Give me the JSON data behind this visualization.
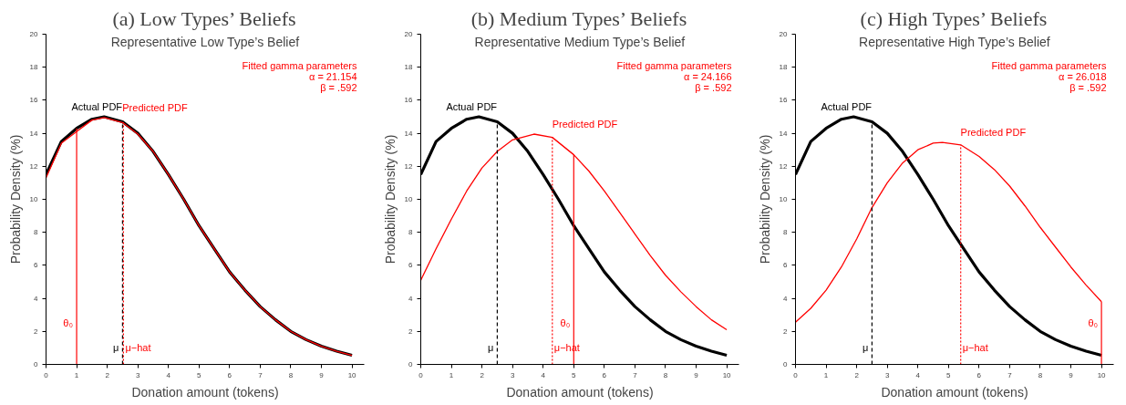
{
  "chart_data": [
    {
      "type": "line",
      "title": "(a) Low Types’ Beliefs",
      "subtitle": "Representative Low Type’s Belief",
      "xlabel": "Donation amount (tokens)",
      "ylabel": "Probability Density (%)",
      "xlim": [
        0,
        10.4
      ],
      "ylim": [
        0,
        20
      ],
      "xticks": [
        0,
        1,
        2,
        3,
        4,
        5,
        6,
        7,
        8,
        9,
        10
      ],
      "yticks": [
        0,
        2,
        4,
        6,
        8,
        10,
        12,
        14,
        16,
        18,
        20
      ],
      "series": [
        {
          "name": "Actual PDF",
          "color": "#000000",
          "x": [
            0,
            0.5,
            1,
            1.5,
            1.9,
            2.5,
            3,
            3.5,
            4,
            4.5,
            5,
            5.5,
            6,
            6.5,
            7,
            7.5,
            8,
            8.5,
            9,
            9.5,
            10
          ],
          "values": [
            11.5,
            13.5,
            14.3,
            14.85,
            15.0,
            14.7,
            14.0,
            12.9,
            11.5,
            10.0,
            8.4,
            7.0,
            5.6,
            4.5,
            3.5,
            2.7,
            2.0,
            1.5,
            1.1,
            0.8,
            0.55
          ]
        },
        {
          "name": "Predicted PDF",
          "color": "#ff0000",
          "x": [
            0,
            0.5,
            1,
            1.5,
            1.9,
            2.5,
            3,
            3.5,
            4,
            4.5,
            5,
            5.5,
            6,
            6.5,
            7,
            7.5,
            8,
            8.5,
            9,
            9.5,
            10
          ],
          "values": [
            11.3,
            13.4,
            14.1,
            14.8,
            14.95,
            14.65,
            13.95,
            12.9,
            11.5,
            10.0,
            8.4,
            7.0,
            5.6,
            4.5,
            3.5,
            2.7,
            2.0,
            1.5,
            1.1,
            0.8,
            0.55
          ]
        }
      ],
      "ref_lines": [
        {
          "axis": "x",
          "value": 1,
          "label": "θ₀",
          "color": "#ff0000",
          "line_style": "solid"
        },
        {
          "axis": "x",
          "value": 2.5,
          "label": "μ",
          "color": "#000000",
          "line_style": "dashed"
        },
        {
          "axis": "x",
          "value": 2.53,
          "label": "μ−hat",
          "color": "#ff0000",
          "line_style": "dotted"
        }
      ],
      "annotations": [
        "Fitted gamma parameters",
        "α = 21.154",
        "β = .592"
      ]
    },
    {
      "type": "line",
      "title": "(b) Medium Types’ Beliefs",
      "subtitle": "Representative Medium Type’s Belief",
      "xlabel": "Donation amount (tokens)",
      "ylabel": "Probability Density (%)",
      "xlim": [
        0,
        10.4
      ],
      "ylim": [
        0,
        20
      ],
      "xticks": [
        0,
        1,
        2,
        3,
        4,
        5,
        6,
        7,
        8,
        9,
        10
      ],
      "yticks": [
        0,
        2,
        4,
        6,
        8,
        10,
        12,
        14,
        16,
        18,
        20
      ],
      "series": [
        {
          "name": "Actual PDF",
          "color": "#000000",
          "x": [
            0,
            0.5,
            1,
            1.5,
            1.9,
            2.5,
            3,
            3.5,
            4,
            4.5,
            5,
            5.5,
            6,
            6.5,
            7,
            7.5,
            8,
            8.5,
            9,
            9.5,
            10
          ],
          "values": [
            11.5,
            13.5,
            14.3,
            14.85,
            15.0,
            14.7,
            14.0,
            12.9,
            11.5,
            10.0,
            8.4,
            7.0,
            5.6,
            4.5,
            3.5,
            2.7,
            2.0,
            1.5,
            1.1,
            0.8,
            0.55
          ]
        },
        {
          "name": "Predicted PDF",
          "color": "#ff0000",
          "x": [
            0,
            0.5,
            1,
            1.5,
            2,
            2.5,
            3,
            3.7,
            4.3,
            5,
            5.5,
            6,
            6.5,
            7,
            7.5,
            8,
            8.5,
            9,
            9.5,
            10
          ],
          "values": [
            5.1,
            7.0,
            8.8,
            10.5,
            11.9,
            12.9,
            13.6,
            13.95,
            13.75,
            12.7,
            11.7,
            10.5,
            9.2,
            7.9,
            6.6,
            5.4,
            4.4,
            3.5,
            2.7,
            2.1
          ]
        }
      ],
      "ref_lines": [
        {
          "axis": "x",
          "value": 2.5,
          "label": "μ",
          "color": "#000000",
          "line_style": "dashed"
        },
        {
          "axis": "x",
          "value": 4.3,
          "label": "μ−hat",
          "color": "#ff0000",
          "line_style": "dotted"
        },
        {
          "axis": "x",
          "value": 5,
          "label": "θ₀",
          "color": "#ff0000",
          "line_style": "solid"
        }
      ],
      "annotations": [
        "Fitted gamma parameters",
        "α = 24.166",
        "β = .592"
      ]
    },
    {
      "type": "line",
      "title": "(c) High Types’ Beliefs",
      "subtitle": "Representative High Type’s Belief",
      "xlabel": "Donation amount (tokens)",
      "ylabel": "Probability Density (%)",
      "xlim": [
        0,
        10.4
      ],
      "ylim": [
        0,
        20
      ],
      "xticks": [
        0,
        1,
        2,
        3,
        4,
        5,
        6,
        7,
        8,
        9,
        10
      ],
      "yticks": [
        0,
        2,
        4,
        6,
        8,
        10,
        12,
        14,
        16,
        18,
        20
      ],
      "series": [
        {
          "name": "Actual PDF",
          "color": "#000000",
          "x": [
            0,
            0.5,
            1,
            1.5,
            1.9,
            2.5,
            3,
            3.5,
            4,
            4.5,
            5,
            5.5,
            6,
            6.5,
            7,
            7.5,
            8,
            8.5,
            9,
            9.5,
            10
          ],
          "values": [
            11.5,
            13.5,
            14.3,
            14.85,
            15.0,
            14.7,
            14.0,
            12.9,
            11.5,
            10.0,
            8.4,
            7.0,
            5.6,
            4.5,
            3.5,
            2.7,
            2.0,
            1.5,
            1.1,
            0.8,
            0.55
          ]
        },
        {
          "name": "Predicted PDF",
          "color": "#ff0000",
          "x": [
            0,
            0.5,
            1,
            1.5,
            2,
            2.5,
            3,
            3.5,
            4,
            4.5,
            4.8,
            5.4,
            6,
            6.5,
            7,
            7.5,
            8,
            8.5,
            9,
            9.5,
            10
          ],
          "values": [
            2.55,
            3.4,
            4.5,
            5.9,
            7.6,
            9.5,
            11.0,
            12.2,
            13.0,
            13.4,
            13.45,
            13.3,
            12.6,
            11.8,
            10.8,
            9.6,
            8.3,
            7.1,
            5.9,
            4.8,
            3.8
          ]
        }
      ],
      "ref_lines": [
        {
          "axis": "x",
          "value": 2.5,
          "label": "μ",
          "color": "#000000",
          "line_style": "dashed"
        },
        {
          "axis": "x",
          "value": 5.4,
          "label": "μ−hat",
          "color": "#ff0000",
          "line_style": "dotted"
        },
        {
          "axis": "x",
          "value": 10,
          "label": "θ₀",
          "color": "#ff0000",
          "line_style": "solid"
        }
      ],
      "annotations": [
        "Fitted gamma parameters",
        "α = 26.018",
        "β = .592"
      ]
    }
  ]
}
